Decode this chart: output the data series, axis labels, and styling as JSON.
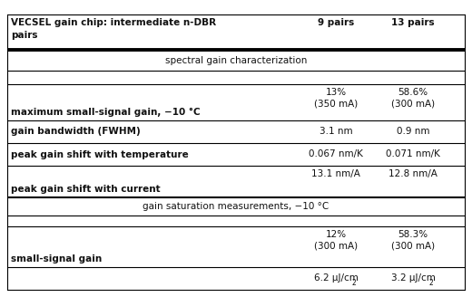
{
  "col_headers": [
    "9 pairs",
    "13 pairs"
  ],
  "section1_header": "spectral gain characterization",
  "section2_header": "gain saturation measurements, −10 °C",
  "header_label_line1": "VECSEL gain chip: intermediate n-DBR",
  "header_label_line2": "pairs",
  "rows": [
    {
      "label": "maximum small-signal gain, −10 °C",
      "val1": "13%\n(350 mA)",
      "val2": "58.6%\n(300 mA)",
      "bold_label": true,
      "multiline": true
    },
    {
      "label": "gain bandwidth (FWHM)",
      "val1": "3.1 nm",
      "val2": "0.9 nm",
      "bold_label": true,
      "multiline": false
    },
    {
      "label": "peak gain shift with temperature",
      "val1": "0.067 nm/K",
      "val2": "0.071 nm/K",
      "bold_label": true,
      "multiline": false
    },
    {
      "label": "peak gain shift with current",
      "val1": "13.1 nm/A",
      "val2": "12.8 nm/A",
      "bold_label": true,
      "multiline": false,
      "val_top": true
    }
  ],
  "rows2": [
    {
      "label": "small-signal gain",
      "val1": "12%\n(300 mA)",
      "val2": "58.3%\n(300 mA)",
      "bold_label": true,
      "multiline": true
    },
    {
      "label": "",
      "val1": "6.2 µJ/cm",
      "val2": "3.2 µJ/cm",
      "sup": "2",
      "bold_label": false,
      "multiline": false
    }
  ],
  "text_color": "#111111",
  "font_size": 7.5,
  "header_font_size": 7.5
}
